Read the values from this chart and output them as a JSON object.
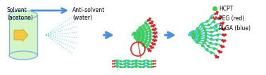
{
  "bg_color": "#ffffff",
  "arrow_color": "#4a90d9",
  "solvent_text": "Solvent\n(acetone)",
  "antisolvent_text": "Anti-solvent\n(water)",
  "cylinder_fill": "#d4f5c8",
  "cylinder_edge": "#7ab8e8",
  "arrow_yellow_fill": "#f5c842",
  "arrow_yellow_edge": "#c8a000",
  "hcpt_color": "#44cc44",
  "peg_color": "#dd2222",
  "plga_color": "#44cccc",
  "legend_hcpt": "HCPT",
  "legend_peg": "PEG (red)",
  "legend_plga": "PLGA (blue)",
  "fig_width": 3.78,
  "fig_height": 1.07,
  "dpi": 100
}
